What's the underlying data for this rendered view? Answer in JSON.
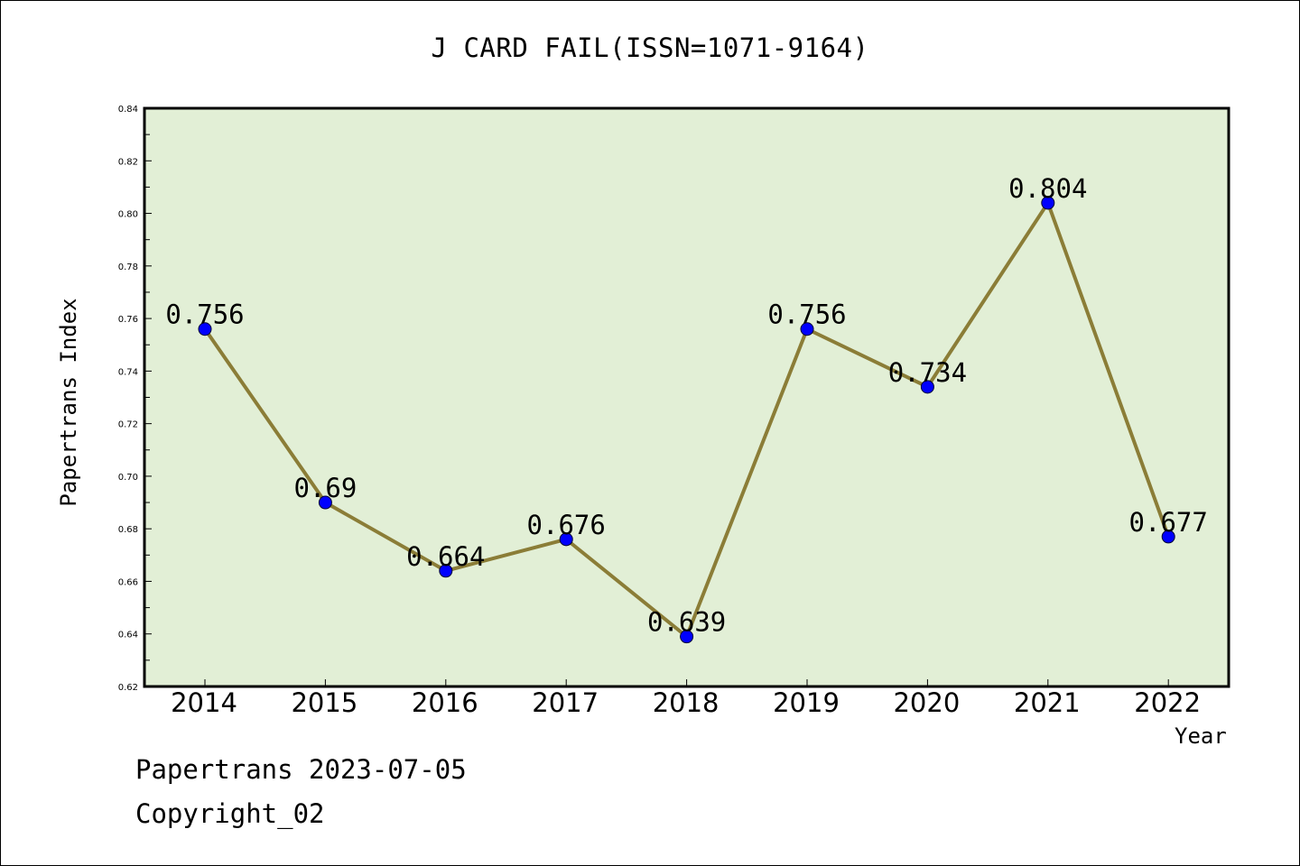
{
  "chart_data": {
    "type": "line",
    "title": "J CARD FAIL(ISSN=1071-9164)",
    "xlabel": "Year",
    "ylabel": "Papertrans Index",
    "x": [
      "2014",
      "2015",
      "2016",
      "2017",
      "2018",
      "2019",
      "2020",
      "2021",
      "2022"
    ],
    "values": [
      0.756,
      0.69,
      0.664,
      0.676,
      0.639,
      0.756,
      0.734,
      0.804,
      0.677
    ],
    "data_labels": [
      "0.756",
      "0.69",
      "0.664",
      "0.676",
      "0.639",
      "0.756",
      "0.734",
      "0.804",
      "0.677"
    ],
    "ylim": [
      0.62,
      0.84
    ],
    "yticks": [
      "0.62",
      "0.64",
      "0.66",
      "0.68",
      "0.70",
      "0.72",
      "0.74",
      "0.76",
      "0.78",
      "0.80",
      "0.82",
      "0.84"
    ],
    "grid": false,
    "colors": {
      "plot_background": "#e2efd6",
      "line": "#8b7d37",
      "marker": "#0000ff"
    }
  },
  "footer": {
    "line1": "Papertrans 2023-07-05",
    "line2": "Copyright_02"
  }
}
